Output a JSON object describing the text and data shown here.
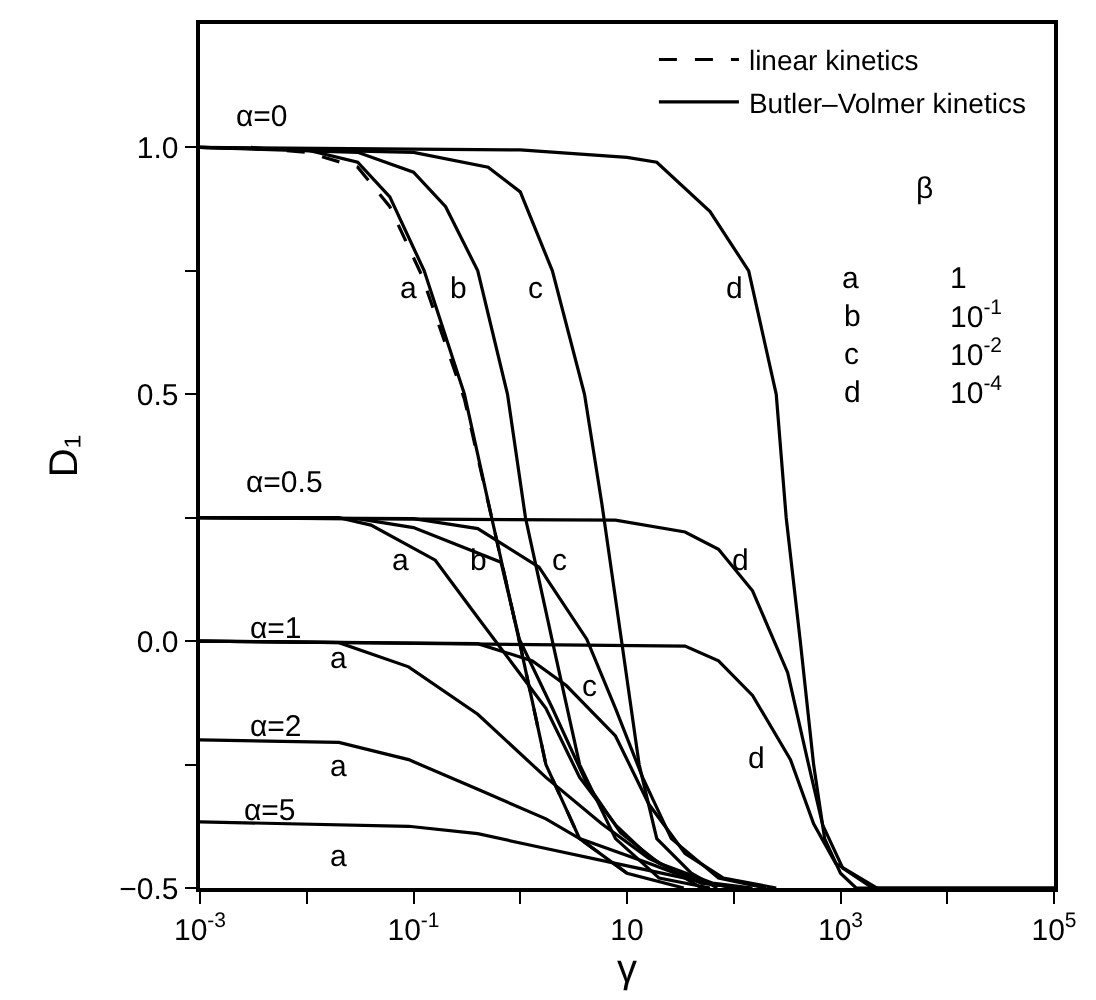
{
  "chart_data": {
    "type": "line",
    "xlabel": "γ",
    "ylabel": "D₁",
    "log": "x",
    "legend": "top right",
    "marker": "none",
    "line_style": "solid",
    "xlim": [
      0.001,
      100000
    ],
    "xticks": [
      {
        "value": 0.001,
        "label": "10$^{-3}$"
      },
      {
        "value": 0.01,
        "label": null
      },
      {
        "value": 0.1,
        "label": "10$^{-1}$"
      },
      {
        "value": 1,
        "label": null
      },
      10,
      {
        "value": 100,
        "label": null
      },
      {
        "value": 1000,
        "label": "10$^{3}$"
      },
      {
        "value": 10000,
        "label": null
      },
      {
        "value": 100000,
        "label": "10$^{5}$"
      }
    ],
    "ylim": [
      -0.5,
      1.25
    ],
    "yticks": [
      {
        "value": -0.5,
        "label": "−0.5"
      },
      {
        "value": -0.25,
        "label": null
      },
      {
        "value": 0,
        "label": "0.0"
      },
      {
        "value": 0.25,
        "label": null
      },
      0.5,
      {
        "value": 0.75,
        "label": null
      },
      {
        "value": 1,
        "label": "1.0"
      }
    ],
    "series": [
      {
        "name": "linear kinetics",
        "color": "#000000",
        "line_style": "dashed",
        "x": [
          0.003,
          0.01,
          0.03,
          0.06,
          0.12,
          0.3,
          0.54,
          0.98,
          1.74,
          3.6,
          10
        ],
        "values": [
          1.0,
          0.99,
          0.96,
          0.88,
          0.74,
          0.49,
          0.25,
          0.0,
          -0.25,
          -0.4,
          -0.47
        ]
      },
      {
        "name": "Butler–Volmer kinetics",
        "color": "#000000",
        "x": [
          0.001,
          0.01,
          0.03,
          0.06,
          0.126,
          0.3,
          0.54,
          0.98,
          1.74,
          3.6,
          10,
          34
        ],
        "values": [
          1.0,
          0.995,
          0.97,
          0.9,
          0.75,
          0.5,
          0.25,
          0.0,
          -0.25,
          -0.4,
          -0.47,
          -0.5
        ]
      },
      {
        "color": "#000000",
        "x": [
          0.001,
          0.03,
          0.1,
          0.2,
          0.4,
          0.76,
          1.12,
          2.0,
          3.6,
          7.8,
          20,
          60
        ],
        "values": [
          1.0,
          0.99,
          0.95,
          0.88,
          0.75,
          0.5,
          0.25,
          0.0,
          -0.25,
          -0.4,
          -0.48,
          -0.5
        ]
      },
      {
        "color": "#000000",
        "x": [
          0.001,
          0.1,
          0.5,
          1,
          2.0,
          4.0,
          5.8,
          8.9,
          13,
          19,
          40,
          70
        ],
        "values": [
          1.0,
          0.99,
          0.96,
          0.91,
          0.75,
          0.5,
          0.28,
          0.0,
          -0.25,
          -0.4,
          -0.47,
          -0.5
        ]
      },
      {
        "color": "#000000",
        "x": [
          0.001,
          1,
          10,
          19,
          60,
          138,
          250,
          310,
          420,
          560,
          710,
          1000,
          1400,
          100000
        ],
        "values": [
          1.0,
          0.995,
          0.98,
          0.97,
          0.87,
          0.75,
          0.5,
          0.25,
          0.0,
          -0.25,
          -0.4,
          -0.47,
          -0.5,
          -0.5
        ]
      },
      {
        "color": "#000000",
        "x": [
          0.001,
          0.02,
          0.04,
          0.16,
          0.4,
          1.74,
          3.6,
          7.8,
          16,
          50
        ],
        "values": [
          0.25,
          0.25,
          0.235,
          0.164,
          0.048,
          -0.136,
          -0.276,
          -0.372,
          -0.436,
          -0.5
        ]
      },
      {
        "color": "#000000",
        "x": [
          0.001,
          0.03,
          0.1,
          0.66,
          0.98,
          2.0,
          4.2,
          8.7,
          20,
          63,
          150
        ],
        "values": [
          0.25,
          0.248,
          0.23,
          0.16,
          0.004,
          -0.136,
          -0.288,
          -0.388,
          -0.45,
          -0.49,
          -0.5
        ]
      },
      {
        "color": "#000000",
        "x": [
          0.001,
          0.1,
          0.4,
          1.5,
          4.2,
          7.8,
          14,
          26,
          72,
          200
        ],
        "values": [
          0.25,
          0.248,
          0.228,
          0.15,
          0.004,
          -0.136,
          -0.276,
          -0.4,
          -0.48,
          -0.5
        ]
      },
      {
        "color": "#000000",
        "x": [
          0.001,
          7.8,
          35,
          72,
          150,
          320,
          500,
          680,
          1050,
          2000,
          100000
        ],
        "values": [
          0.25,
          0.245,
          0.221,
          0.186,
          0.102,
          -0.064,
          -0.248,
          -0.372,
          -0.46,
          -0.5,
          -0.5
        ]
      },
      {
        "color": "#000000",
        "x": [
          0.001,
          0.02,
          0.09,
          0.4,
          1.74,
          5.8,
          16,
          50,
          120
        ],
        "values": [
          0.0,
          -0.003,
          -0.052,
          -0.148,
          -0.276,
          -0.37,
          -0.44,
          -0.49,
          -0.5
        ]
      },
      {
        "color": "#000000",
        "x": [
          0.001,
          0.4,
          1.3,
          2.7,
          7.8,
          16,
          35,
          80,
          250
        ],
        "values": [
          0.0,
          -0.005,
          -0.04,
          -0.09,
          -0.192,
          -0.33,
          -0.43,
          -0.48,
          -0.5
        ]
      },
      {
        "color": "#000000",
        "x": [
          0.001,
          35,
          72,
          150,
          340,
          560,
          900,
          2200
        ],
        "values": [
          0.0,
          -0.01,
          -0.04,
          -0.11,
          -0.24,
          -0.37,
          -0.45,
          -0.5
        ]
      },
      {
        "color": "#000000",
        "x": [
          0.001,
          0.02,
          0.09,
          0.4,
          1.74,
          3.6,
          16,
          50,
          130
        ],
        "values": [
          -0.2,
          -0.205,
          -0.24,
          -0.3,
          -0.36,
          -0.4,
          -0.45,
          -0.49,
          -0.5
        ]
      },
      {
        "color": "#000000",
        "x": [
          0.001,
          0.09,
          0.4,
          1.74,
          7.8,
          35,
          100
        ],
        "values": [
          -0.366,
          -0.375,
          -0.39,
          -0.42,
          -0.45,
          -0.48,
          -0.5
        ]
      }
    ],
    "annotations": [
      "α=0",
      "α=0.5",
      "α=1",
      "α=2",
      "α=5",
      "a",
      "b",
      "c",
      "d",
      "a",
      "b",
      "c",
      "d",
      "a",
      "c",
      "d",
      "a",
      "a",
      "β",
      "a",
      "1",
      "b",
      "10$^{-1}$",
      "c",
      "10$^{-2}$",
      "d",
      "10$^{-4}$"
    ]
  }
}
